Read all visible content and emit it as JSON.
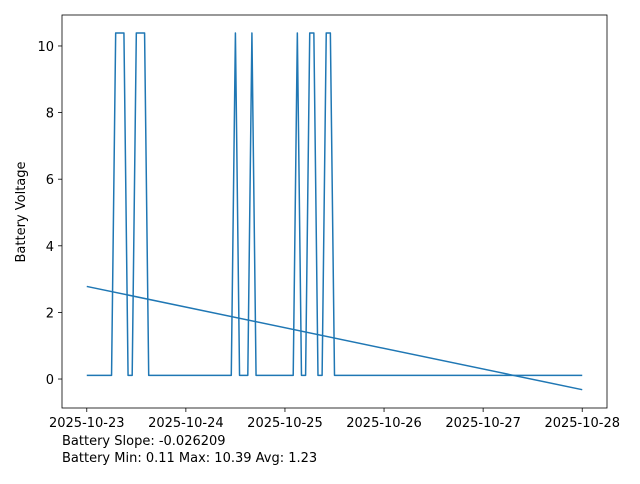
{
  "chart_data": {
    "type": "line",
    "ylabel": "Battery Voltage",
    "ylabel_color": "#1f77b4",
    "annotations": [
      "Battery Slope: -0.026209",
      "Battery Min: 0.11 Max: 10.39 Avg: 1.23"
    ],
    "series": [
      {
        "color": "#1f77b4",
        "x": [
          "2025-10-23T00:00",
          "2025-10-23T06:00",
          "2025-10-23T07:00",
          "2025-10-23T09:00",
          "2025-10-23T10:00",
          "2025-10-23T11:00",
          "2025-10-23T12:00",
          "2025-10-23T14:00",
          "2025-10-23T15:00",
          "2025-10-24T11:00",
          "2025-10-24T12:00",
          "2025-10-24T13:00",
          "2025-10-24T15:00",
          "2025-10-24T16:00",
          "2025-10-24T17:00",
          "2025-10-25T02:00",
          "2025-10-25T03:00",
          "2025-10-25T04:00",
          "2025-10-25T05:00",
          "2025-10-25T06:00",
          "2025-10-25T07:00",
          "2025-10-25T08:00",
          "2025-10-25T09:00",
          "2025-10-25T10:00",
          "2025-10-25T11:00",
          "2025-10-25T12:00",
          "2025-10-28T00:00"
        ],
        "values": [
          0.11,
          0.11,
          10.39,
          10.39,
          0.11,
          0.11,
          10.39,
          10.39,
          0.11,
          0.11,
          10.39,
          0.11,
          0.11,
          10.39,
          0.11,
          0.11,
          10.39,
          0.11,
          0.11,
          10.39,
          10.39,
          0.11,
          0.11,
          10.39,
          10.39,
          0.11,
          0.11
        ]
      },
      {
        "color": "#1f77b4",
        "x": [
          "2025-10-23T00:00",
          "2025-10-28T00:00"
        ],
        "values": [
          2.78,
          -0.32
        ]
      }
    ],
    "xlim": [
      "2025-10-22T18:00",
      "2025-10-28T06:00"
    ],
    "xticks": [
      "2025-10-23",
      "2025-10-24",
      "2025-10-25",
      "2025-10-26",
      "2025-10-27",
      "2025-10-28"
    ],
    "ylim": [
      -0.87,
      10.93
    ],
    "yticks": [
      0,
      2,
      4,
      6,
      8,
      10
    ]
  }
}
